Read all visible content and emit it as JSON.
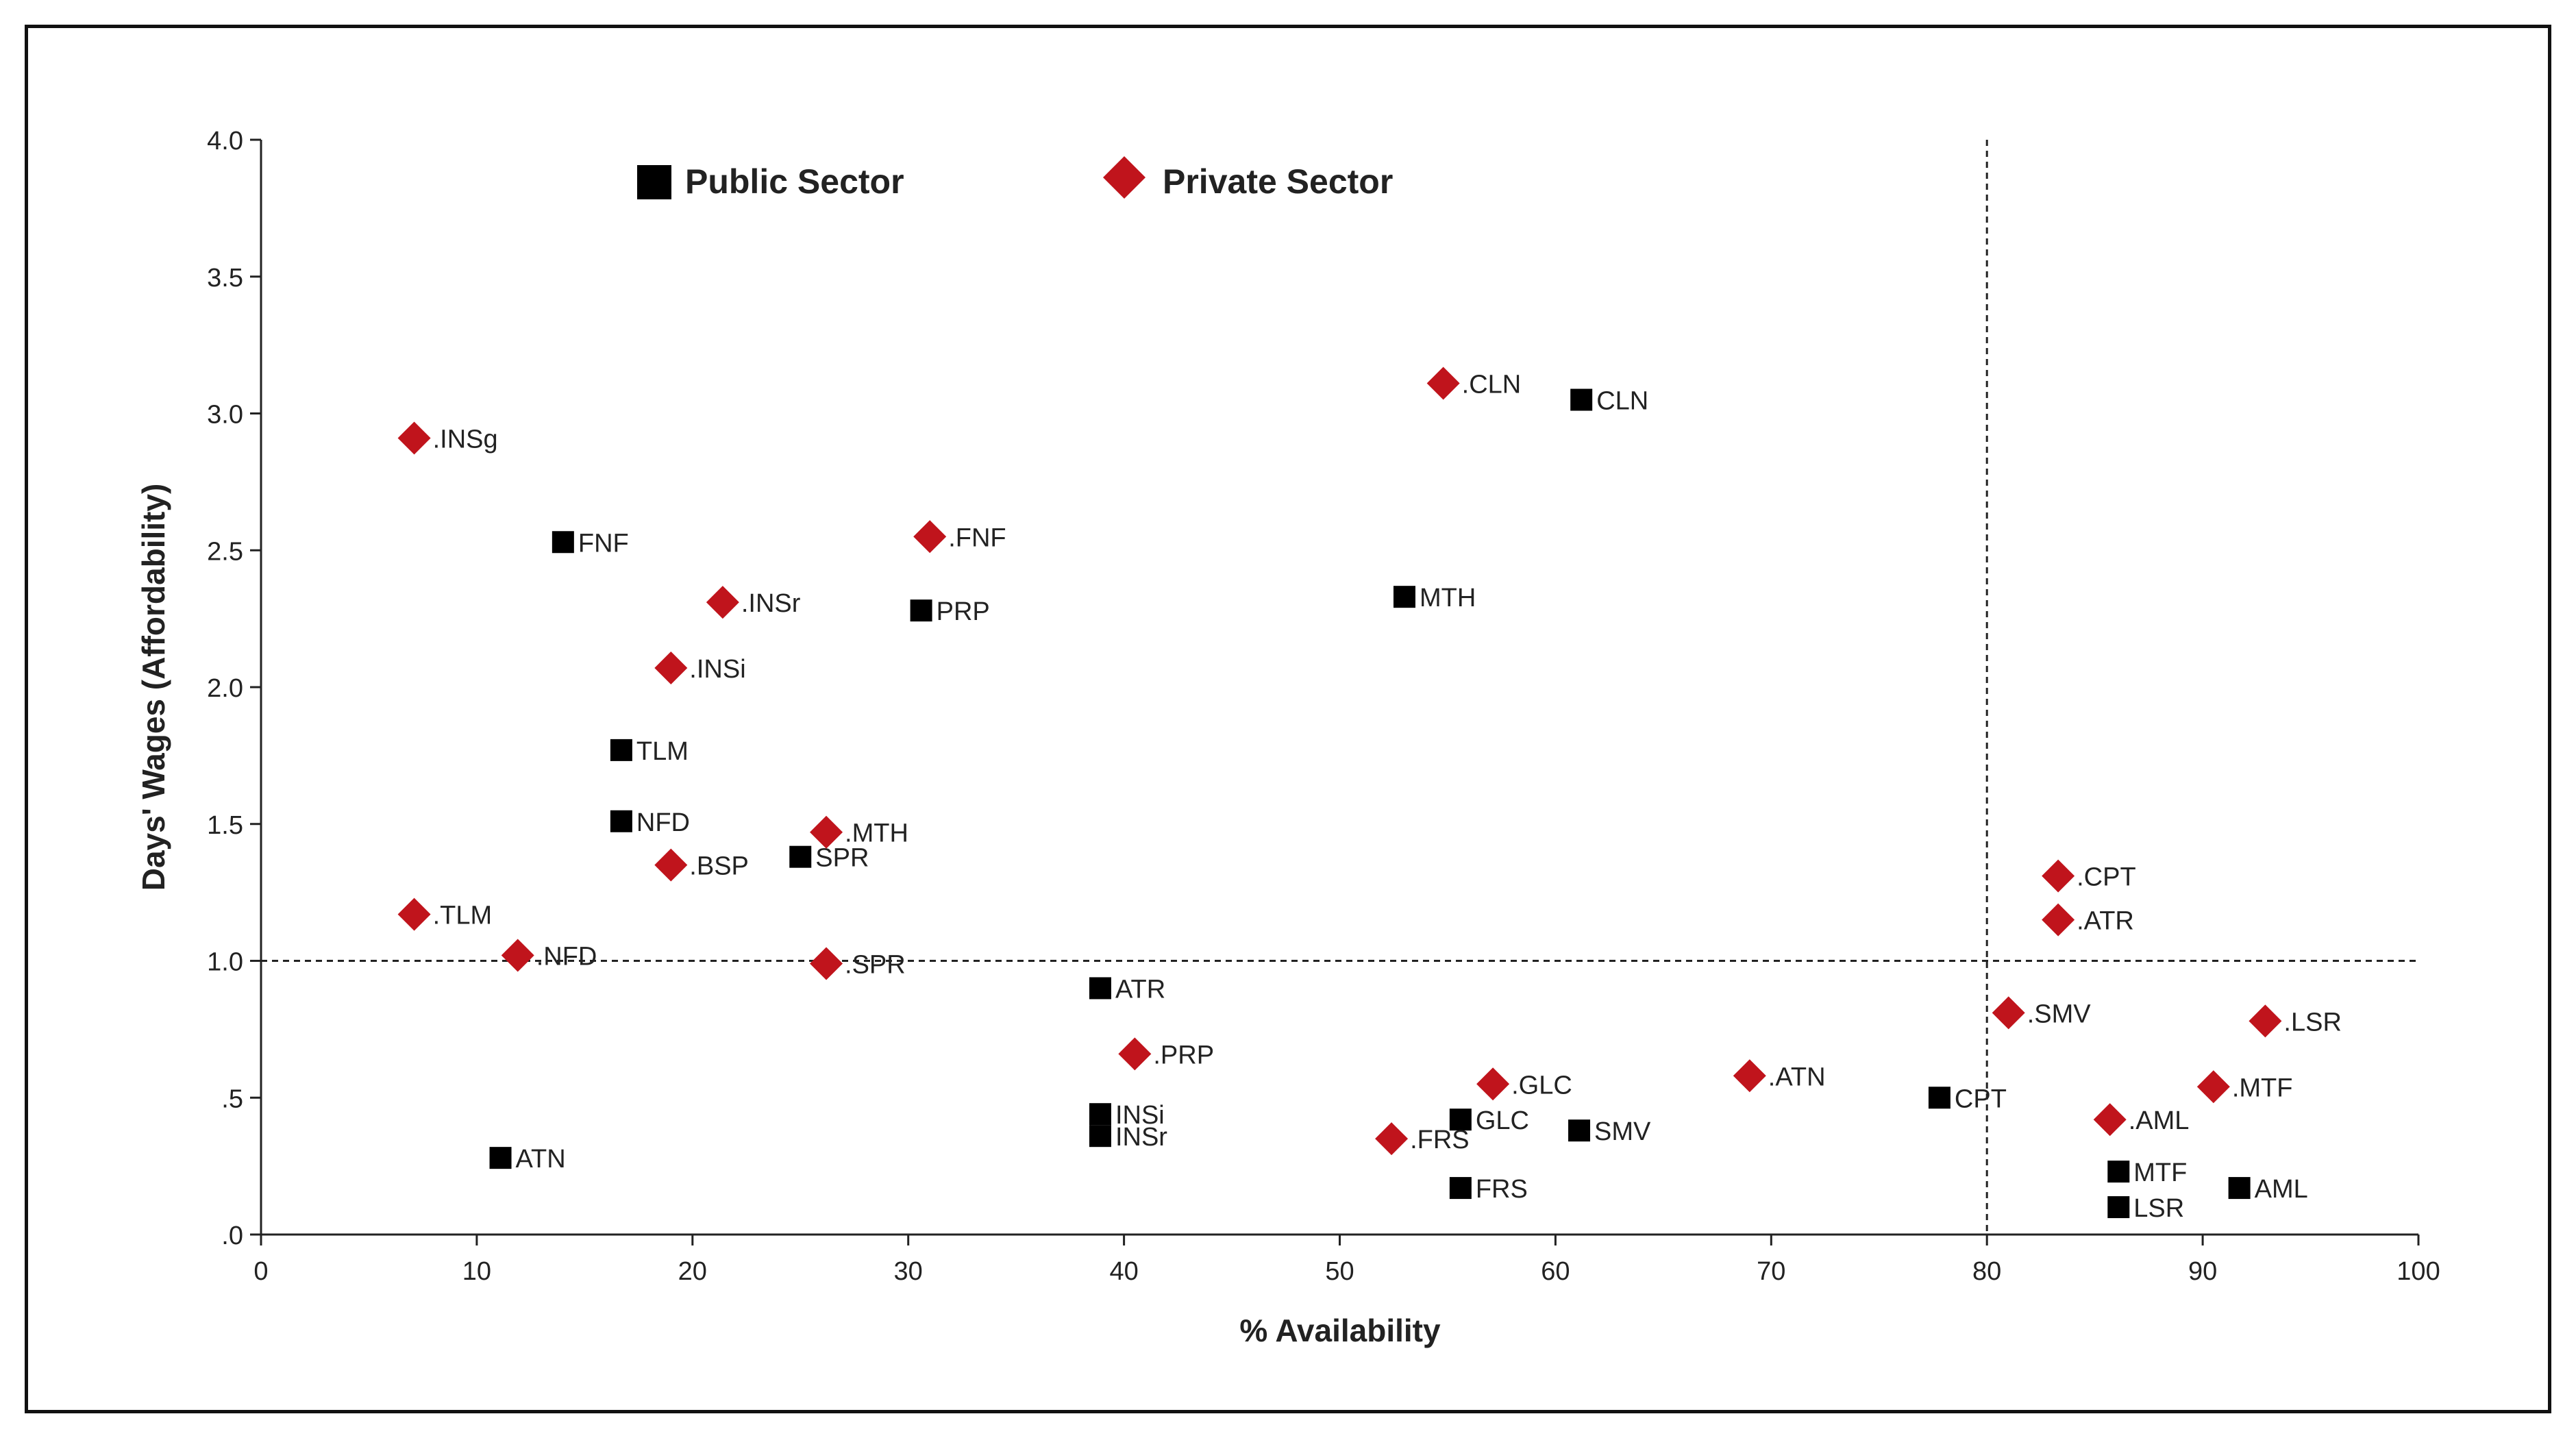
{
  "chart_data": {
    "type": "scatter",
    "title": "",
    "xlabel": "% Availability",
    "ylabel": "Days' Wages (Affordability)",
    "xlim": [
      0,
      100
    ],
    "ylim": [
      0,
      4.0
    ],
    "x_ticks": [
      0,
      10,
      20,
      30,
      40,
      50,
      60,
      70,
      80,
      90,
      100
    ],
    "x_tick_labels": [
      "0",
      "10",
      "20",
      "30",
      "40",
      "50",
      "60",
      "70",
      "80",
      "90",
      "100"
    ],
    "y_ticks": [
      0,
      0.5,
      1.0,
      1.5,
      2.0,
      2.5,
      3.0,
      3.5,
      4.0
    ],
    "y_tick_labels": [
      ".0",
      ".5",
      "1.0",
      "1.5",
      "2.0",
      "2.5",
      "3.0",
      "3.5",
      "4.0"
    ],
    "reference_lines": {
      "x": 80,
      "y": 1.0,
      "style": "dashed"
    },
    "legend": {
      "placement": "top",
      "entries": [
        "Public Sector",
        "Private Sector"
      ]
    },
    "series": [
      {
        "name": "Public Sector",
        "marker": "square",
        "color": "#000000",
        "points": [
          {
            "label": "CLN",
            "x": 61.2,
            "y": 3.05
          },
          {
            "label": "FNF",
            "x": 14.0,
            "y": 2.53
          },
          {
            "label": "MTH",
            "x": 53.0,
            "y": 2.33
          },
          {
            "label": "PRP",
            "x": 30.6,
            "y": 2.28
          },
          {
            "label": "TLM",
            "x": 16.7,
            "y": 1.77
          },
          {
            "label": "NFD",
            "x": 16.7,
            "y": 1.51
          },
          {
            "label": "SPR",
            "x": 25.0,
            "y": 1.38
          },
          {
            "label": "ATR",
            "x": 38.9,
            "y": 0.9
          },
          {
            "label": "CPT",
            "x": 77.8,
            "y": 0.5
          },
          {
            "label": "INSi",
            "x": 38.9,
            "y": 0.44
          },
          {
            "label": "GLC",
            "x": 55.6,
            "y": 0.42
          },
          {
            "label": "INSr",
            "x": 38.9,
            "y": 0.36
          },
          {
            "label": "SMV",
            "x": 61.1,
            "y": 0.38
          },
          {
            "label": "ATN",
            "x": 11.1,
            "y": 0.28
          },
          {
            "label": "FRS",
            "x": 55.6,
            "y": 0.17
          },
          {
            "label": "MTF",
            "x": 86.1,
            "y": 0.23
          },
          {
            "label": "AML",
            "x": 91.7,
            "y": 0.17
          },
          {
            "label": "LSR",
            "x": 86.1,
            "y": 0.1
          }
        ]
      },
      {
        "name": "Private Sector",
        "marker": "diamond",
        "color": "#c0141c",
        "points": [
          {
            "label": ".CLN",
            "x": 54.8,
            "y": 3.11
          },
          {
            "label": ".INSg",
            "x": 7.1,
            "y": 2.91
          },
          {
            "label": ".FNF",
            "x": 31.0,
            "y": 2.55
          },
          {
            "label": ".INSr",
            "x": 21.4,
            "y": 2.31
          },
          {
            "label": ".INSi",
            "x": 19.0,
            "y": 2.07
          },
          {
            "label": ".MTH",
            "x": 26.2,
            "y": 1.47
          },
          {
            "label": ".BSP",
            "x": 19.0,
            "y": 1.35
          },
          {
            "label": ".TLM",
            "x": 7.1,
            "y": 1.17
          },
          {
            "label": ".NFD",
            "x": 11.9,
            "y": 1.02
          },
          {
            "label": ".SPR",
            "x": 26.2,
            "y": 0.99
          },
          {
            "label": ".PRP",
            "x": 40.5,
            "y": 0.66
          },
          {
            "label": ".GLC",
            "x": 57.1,
            "y": 0.55
          },
          {
            "label": ".ATN",
            "x": 69.0,
            "y": 0.58
          },
          {
            "label": ".FRS",
            "x": 52.4,
            "y": 0.35
          },
          {
            "label": ".CPT",
            "x": 83.3,
            "y": 1.31
          },
          {
            "label": ".ATR",
            "x": 83.3,
            "y": 1.15
          },
          {
            "label": ".SMV",
            "x": 81.0,
            "y": 0.81
          },
          {
            "label": ".LSR",
            "x": 92.9,
            "y": 0.78
          },
          {
            "label": ".MTF",
            "x": 90.5,
            "y": 0.54
          },
          {
            "label": ".AML",
            "x": 85.7,
            "y": 0.42
          }
        ]
      }
    ]
  }
}
